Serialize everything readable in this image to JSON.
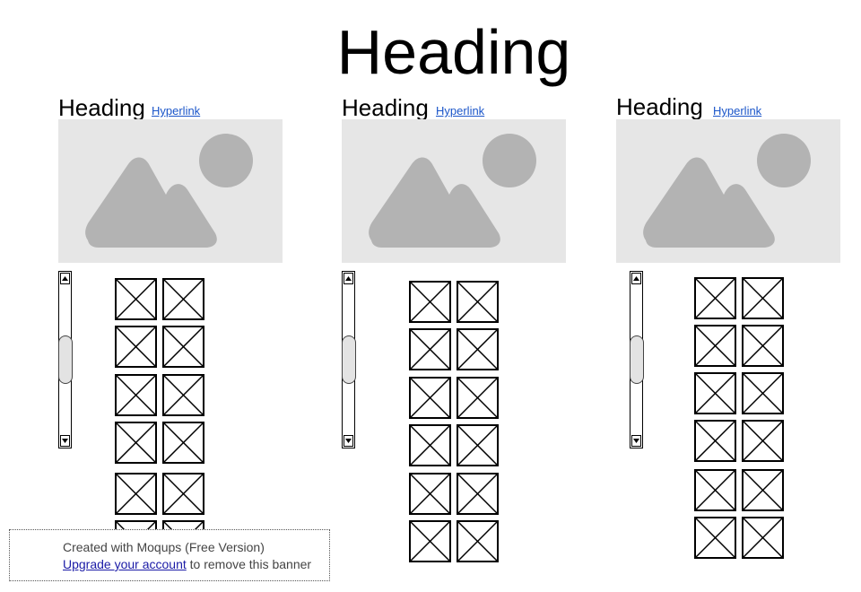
{
  "page": {
    "title": "Heading"
  },
  "banner": {
    "line1": "Created with Moqups (Free Version)",
    "link_text": "Upgrade your account",
    "line2_suffix": " to remove this banner"
  },
  "cards": [
    {
      "heading": "Heading",
      "link": "Hyperlink",
      "image_icon": "image-placeholder-icon",
      "scrollbar_position": 0.5
    },
    {
      "heading": "Heading",
      "link": "Hyperlink",
      "image_icon": "image-placeholder-icon",
      "scrollbar_position": 0.5
    },
    {
      "heading": "Heading",
      "link": "Hyperlink",
      "image_icon": "image-placeholder-icon",
      "scrollbar_position": 0.5
    }
  ],
  "colors": {
    "image_bg": "#e6e6e6",
    "image_shape": "#b3b3b3",
    "link": "#1a55c9"
  }
}
